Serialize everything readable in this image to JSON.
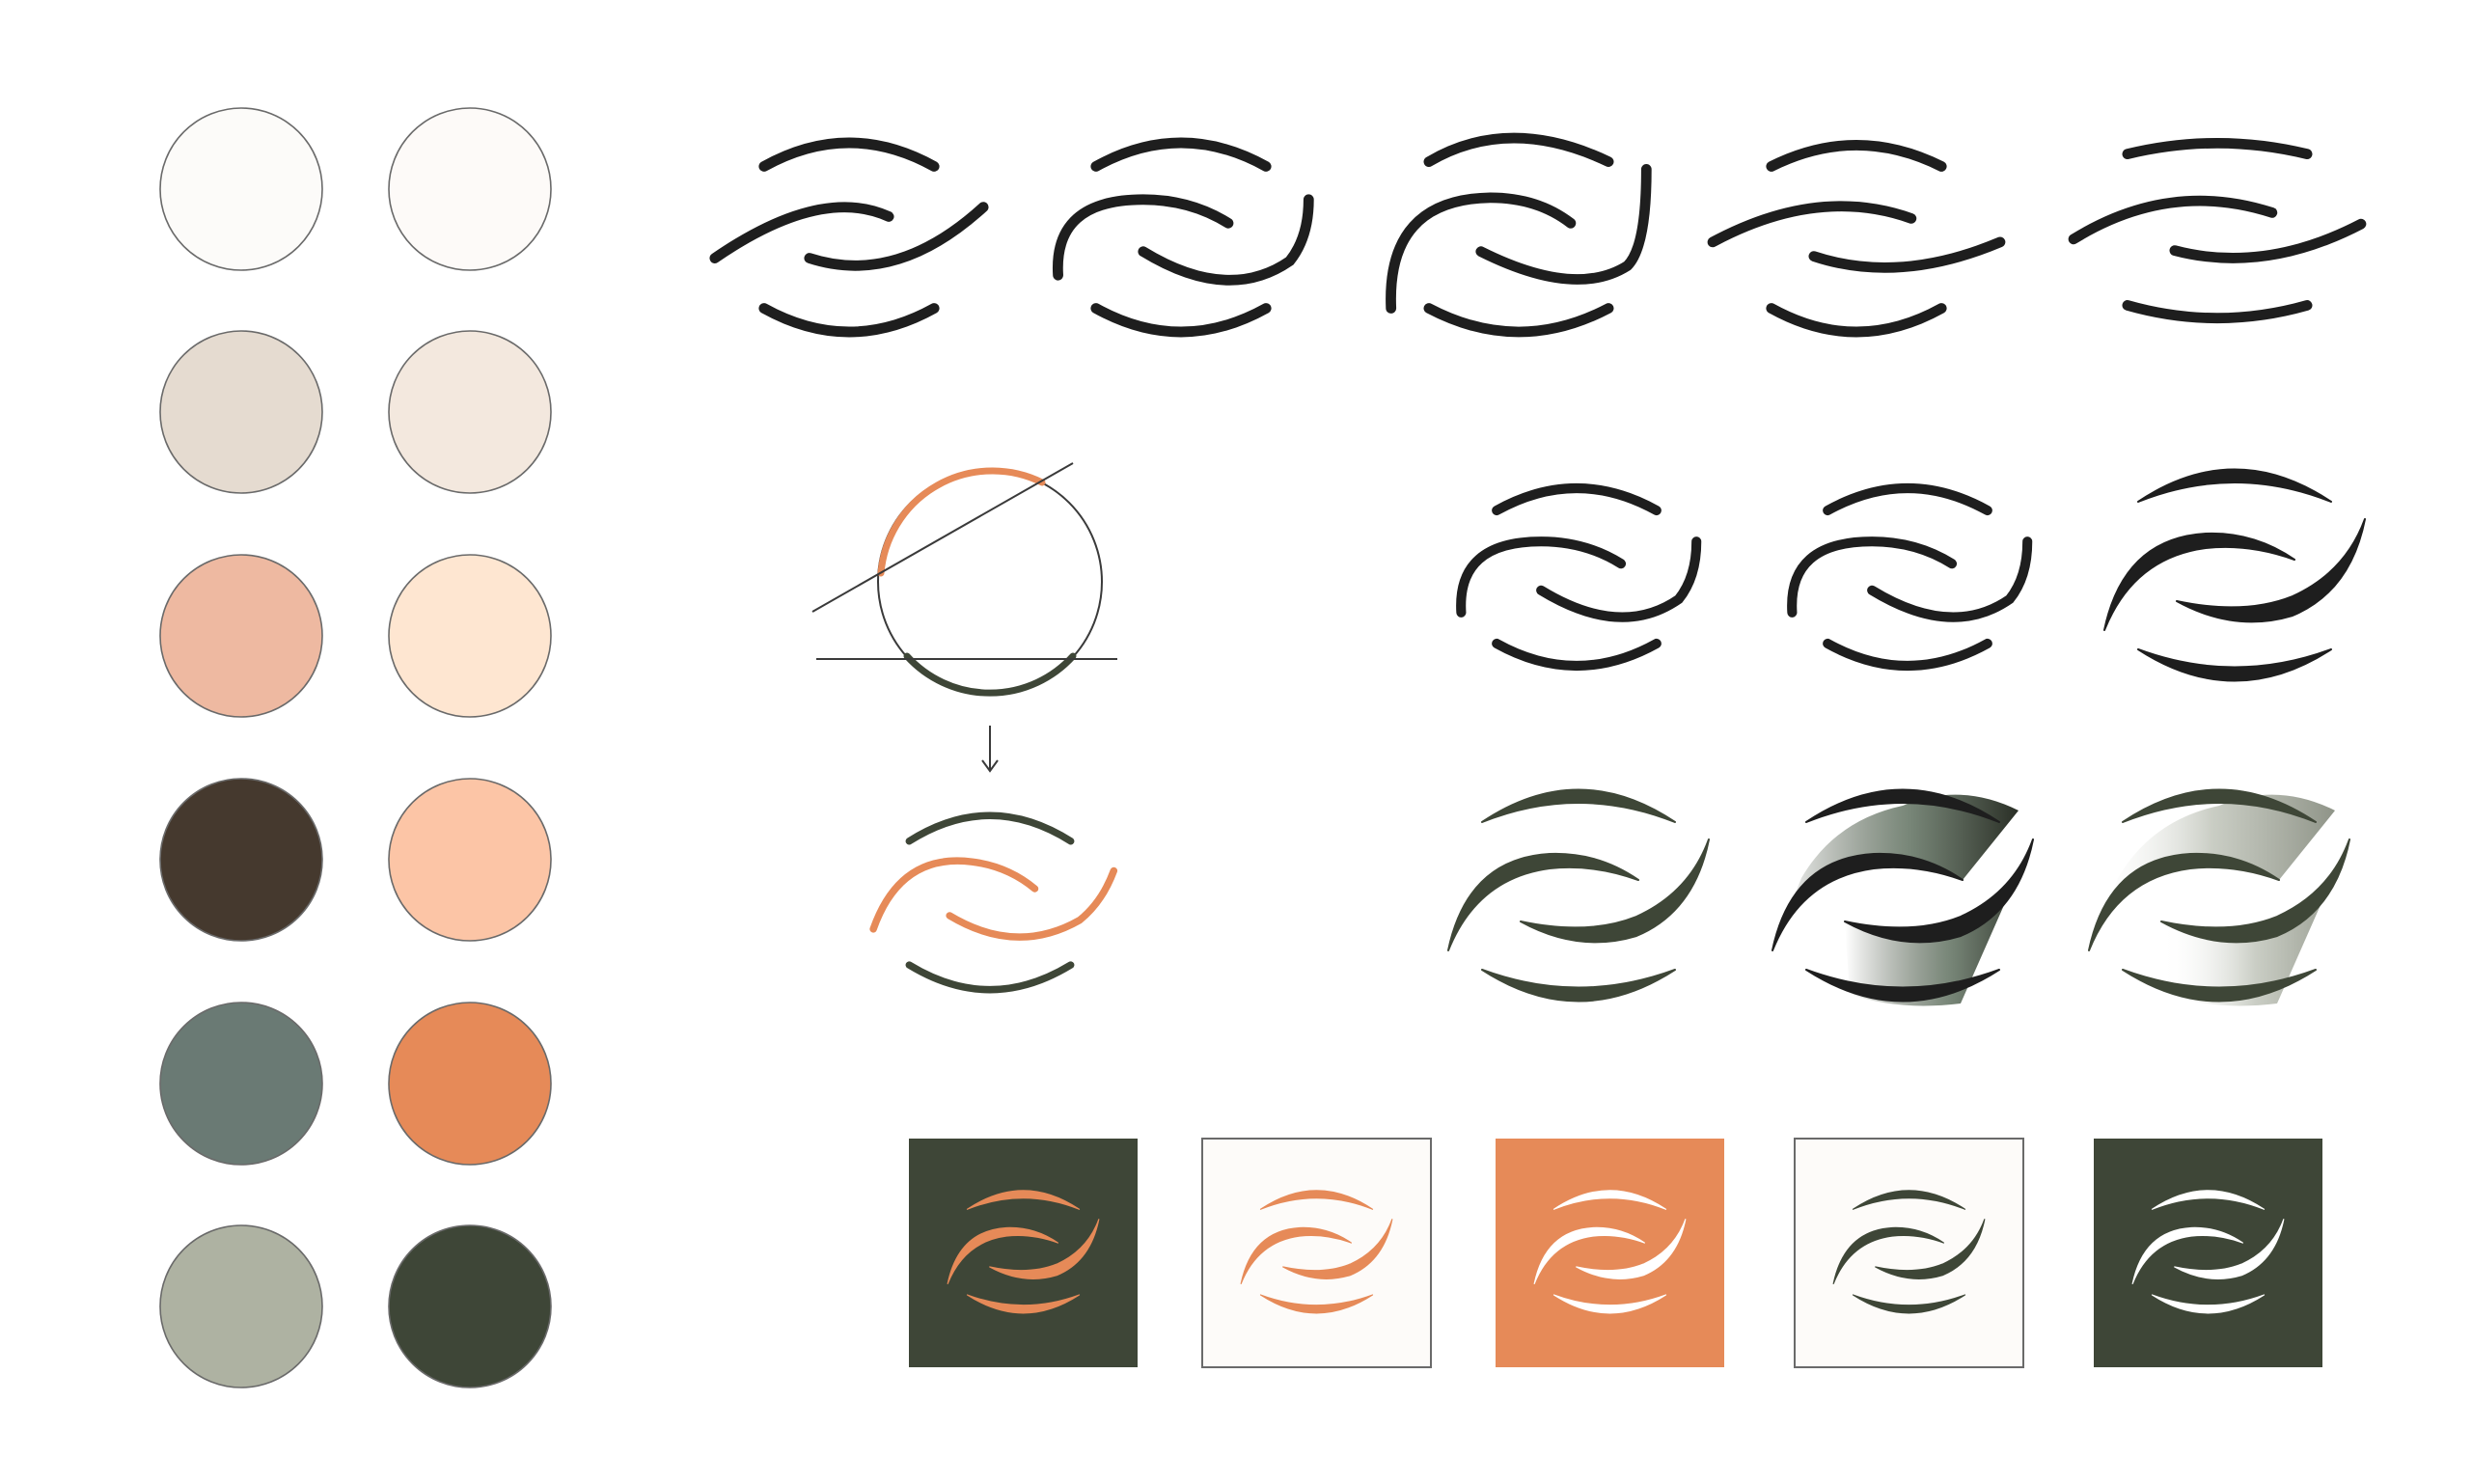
{
  "palette": {
    "swatches": [
      {
        "name": "off-white",
        "hex": "#FCFBF9"
      },
      {
        "name": "blush-white",
        "hex": "#FDFAF8"
      },
      {
        "name": "greige",
        "hex": "#E5DBD0"
      },
      {
        "name": "linen",
        "hex": "#F3E8DE"
      },
      {
        "name": "peach-rose",
        "hex": "#EEB9A1"
      },
      {
        "name": "cream-peach",
        "hex": "#FEE6D1"
      },
      {
        "name": "dark-brown",
        "hex": "#45392E"
      },
      {
        "name": "apricot",
        "hex": "#FCC5A6"
      },
      {
        "name": "slate-green",
        "hex": "#6A7A74"
      },
      {
        "name": "terracotta",
        "hex": "#E68A58"
      },
      {
        "name": "sage",
        "hex": "#AEB2A2"
      },
      {
        "name": "forest",
        "hex": "#3E4637"
      }
    ],
    "swatch_outline": "#6a6a6a"
  },
  "colors": {
    "ink": "#1E1E1E",
    "orange": "#E68A58",
    "green": "#3E4637",
    "white": "#FFFFFF",
    "tile_light": "#FDFBF9",
    "tile_border": "#6A6A6A",
    "guide": "#3a3a3a"
  },
  "sketches": {
    "row1_count": 5,
    "row2_count": 3,
    "row3_count": 3
  },
  "construction": {
    "arrow_icon": "down-arrow-icon"
  },
  "app_icons": [
    {
      "name": "green-orange",
      "background": "#3E4637",
      "mark": "#E68A58",
      "bordered": false
    },
    {
      "name": "light-orange",
      "background": "#FDFBF9",
      "mark": "#E68A58",
      "bordered": true
    },
    {
      "name": "orange-white",
      "background": "#E68A58",
      "mark": "#FFFFFF",
      "bordered": false
    },
    {
      "name": "light-green",
      "background": "#FDFBF9",
      "mark": "#3E4637",
      "bordered": true
    },
    {
      "name": "green-white",
      "background": "#3E4637",
      "mark": "#FFFFFF",
      "bordered": false
    }
  ]
}
